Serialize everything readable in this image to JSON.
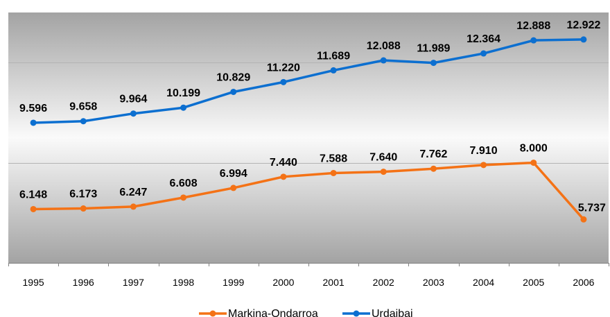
{
  "chart_data": {
    "type": "line",
    "categories": [
      "1995",
      "1996",
      "1997",
      "1998",
      "1999",
      "2000",
      "2001",
      "2002",
      "2003",
      "2004",
      "2005",
      "2006"
    ],
    "series": [
      {
        "name": "Markina-Ondarroa",
        "color": "#f47216",
        "values": [
          6148,
          6173,
          6247,
          6608,
          6994,
          7440,
          7588,
          7640,
          7762,
          7910,
          8000,
          5737
        ],
        "labels": [
          "6.148",
          "6.173",
          "6.247",
          "6.608",
          "6.994",
          "7.440",
          "7.588",
          "7.640",
          "7.762",
          "7.910",
          "8.000",
          "5.737"
        ]
      },
      {
        "name": "Urdaibai",
        "color": "#0c6fd0",
        "values": [
          9596,
          9658,
          9964,
          10199,
          10829,
          11220,
          11689,
          12088,
          11989,
          12364,
          12888,
          12922
        ],
        "labels": [
          "9.596",
          "9.658",
          "9.964",
          "10.199",
          "10.829",
          "11.220",
          "11.689",
          "12.088",
          "11.989",
          "12.364",
          "12.888",
          "12.922"
        ]
      }
    ],
    "ylim": [
      4000,
      14000
    ],
    "ygrid": [
      8000,
      12000
    ],
    "grid": true,
    "legend": "bottom",
    "title": "",
    "xlabel": "",
    "ylabel": ""
  }
}
